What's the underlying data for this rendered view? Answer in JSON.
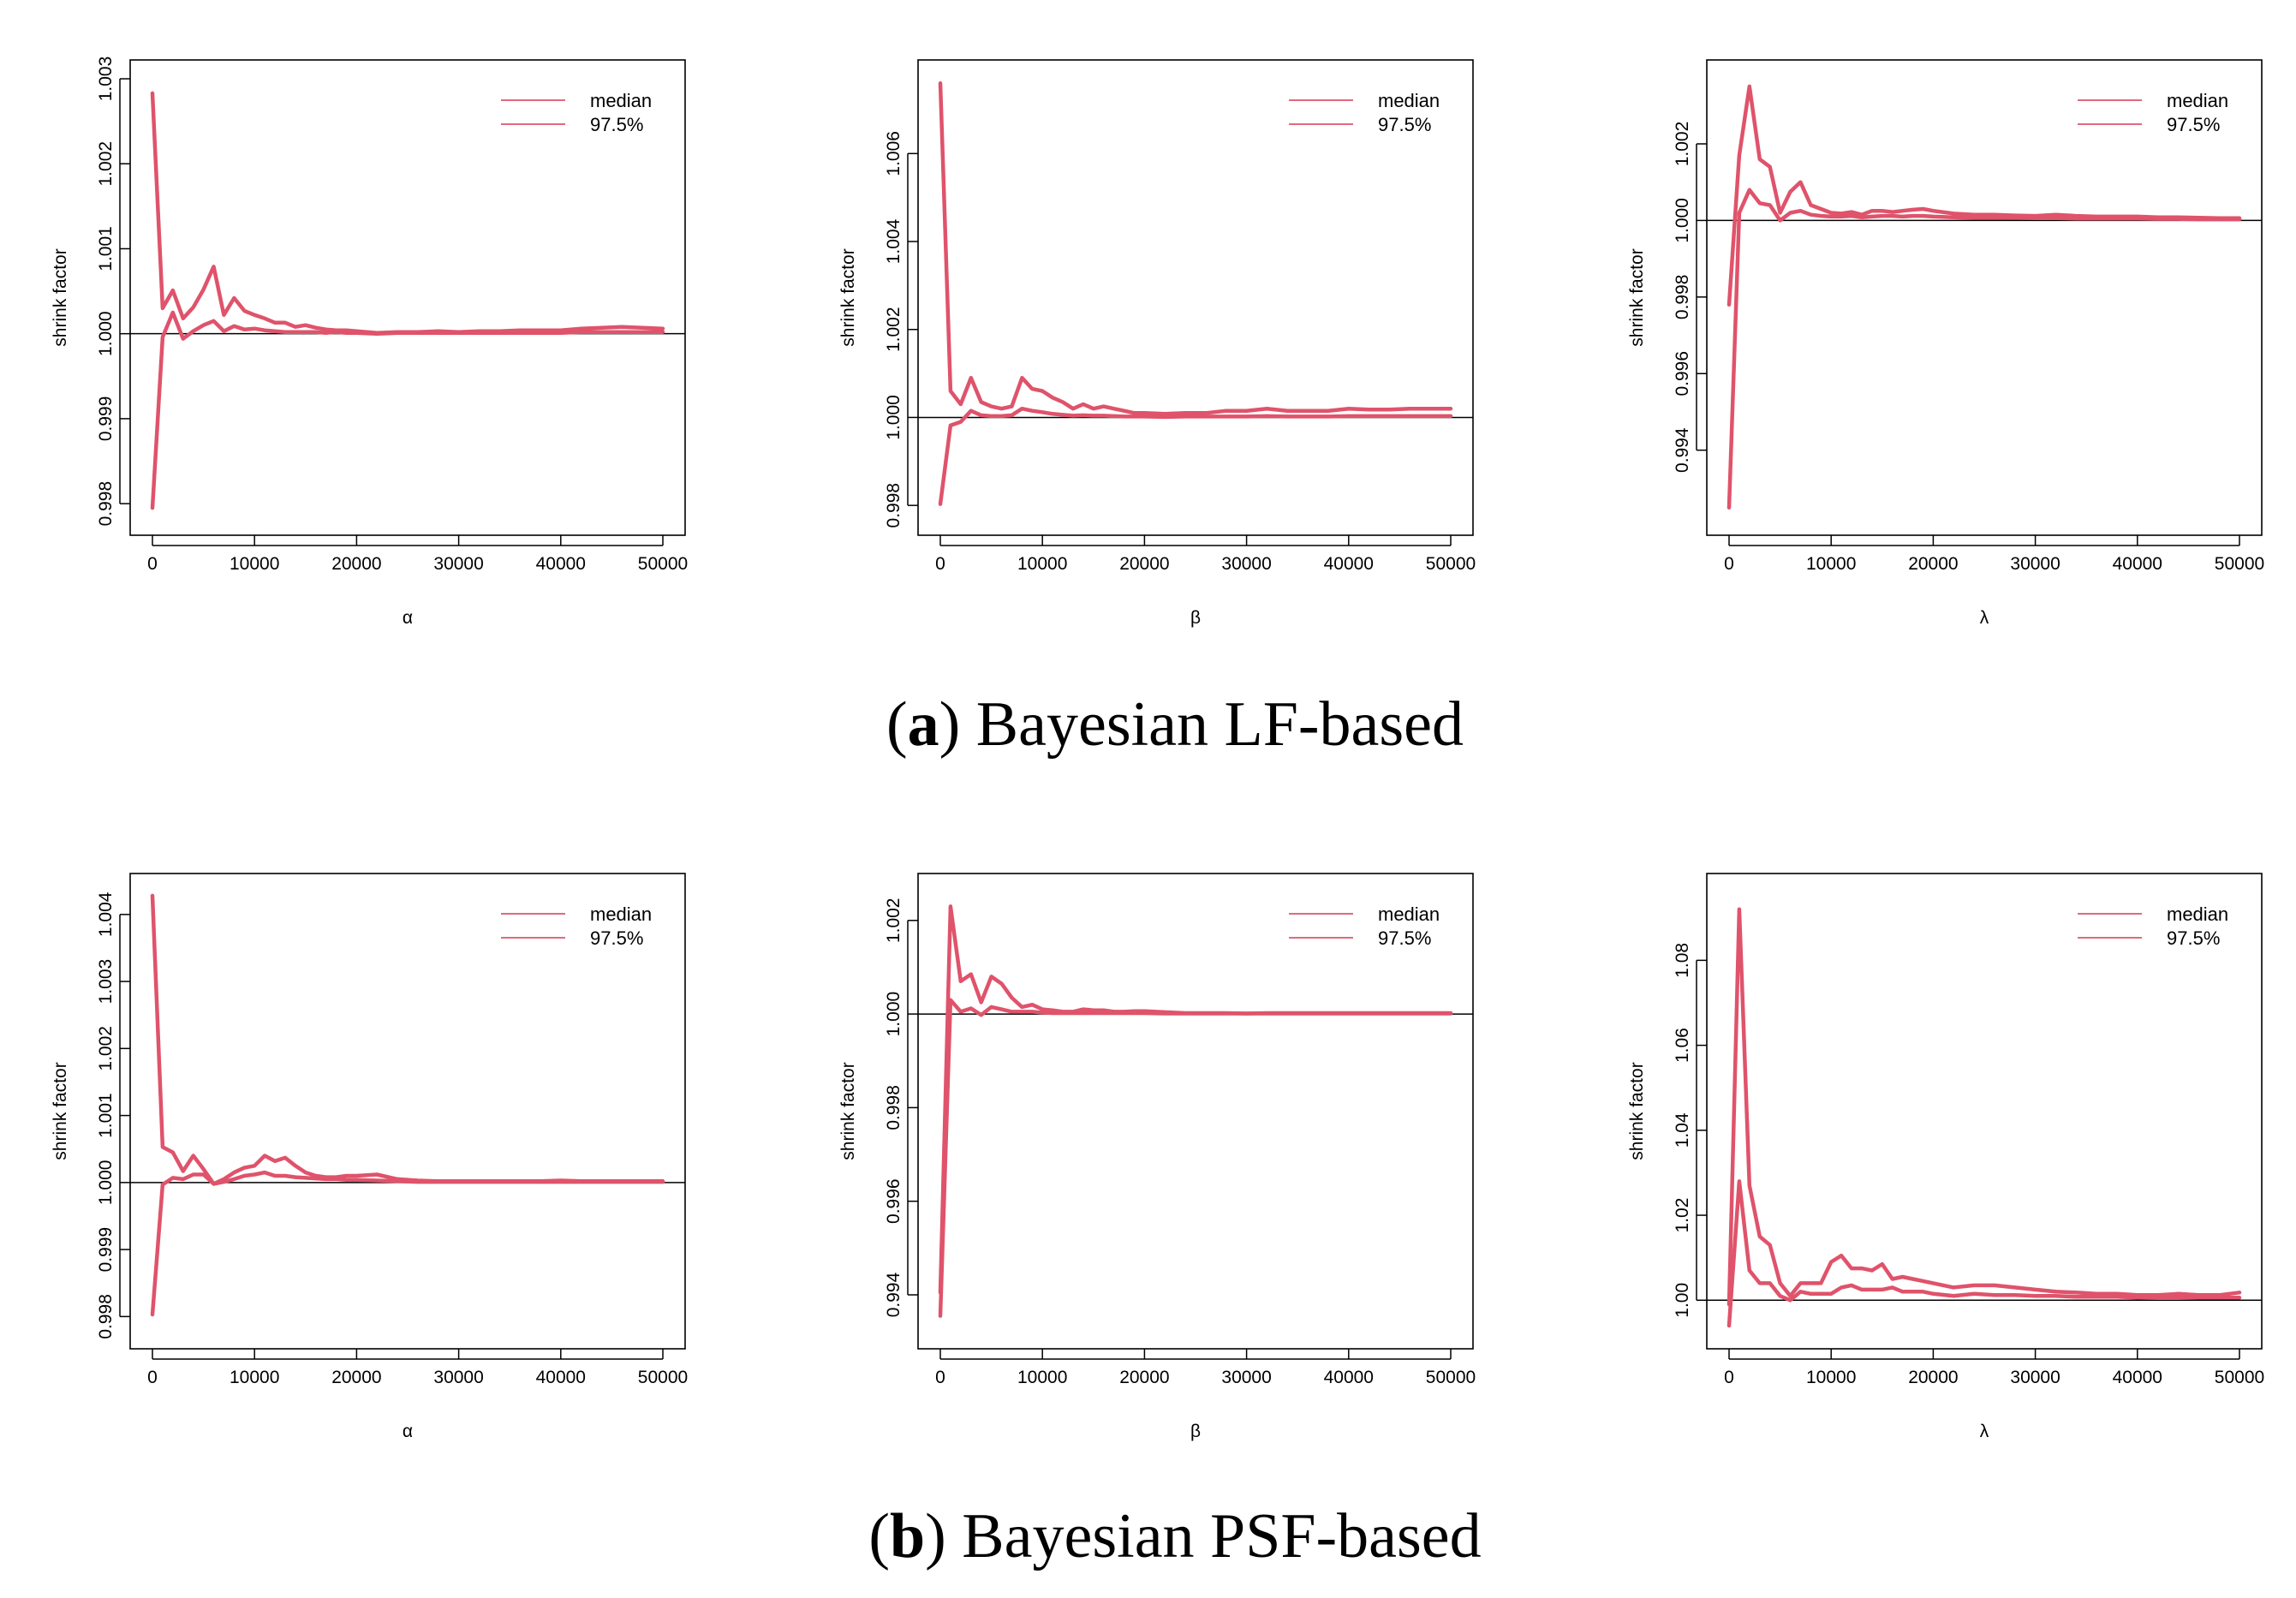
{
  "colors": {
    "series": "#df536b",
    "reference": "#000000",
    "frame": "#000000"
  },
  "captions": [
    {
      "label": "a",
      "text": " Bayesian LF-based"
    },
    {
      "label": "b",
      "text": " Bayesian PSF-based"
    }
  ],
  "chart_data": [
    {
      "type": "line",
      "parameter": "α",
      "xlabel": "α",
      "ylabel": "shrink factor",
      "xlim": [
        0,
        50000
      ],
      "xticks": [
        0,
        10000,
        20000,
        30000,
        40000,
        50000
      ],
      "xtick_labels": [
        "0",
        "10000",
        "20000",
        "30000",
        "40000",
        "50000"
      ],
      "ylim": [
        0.99785,
        1.003
      ],
      "yticks": [
        0.998,
        0.999,
        1.0,
        1.001,
        1.002,
        1.003
      ],
      "ytick_labels": [
        "0.998",
        "0.999",
        "1.000",
        "1.001",
        "1.002",
        "1.003"
      ],
      "reference_line": 1.0,
      "legend": [
        "median",
        "97.5%"
      ],
      "legend_position": "top-right",
      "x": [
        0,
        1000,
        2000,
        3000,
        4000,
        5000,
        6000,
        7000,
        8000,
        9000,
        10000,
        11000,
        12000,
        13000,
        14000,
        15000,
        16000,
        17000,
        18000,
        19000,
        20000,
        22000,
        24000,
        26000,
        28000,
        30000,
        32000,
        34000,
        36000,
        38000,
        40000,
        42000,
        44000,
        46000,
        48000,
        50000
      ],
      "series": [
        {
          "name": "median",
          "values": [
            0.99795,
            0.99996,
            1.00025,
            0.99994,
            1.00003,
            1.0001,
            1.00015,
            1.00003,
            1.00009,
            1.00005,
            1.00006,
            1.00004,
            1.00003,
            1.00002,
            1.00002,
            1.00002,
            1.00002,
            1.00001,
            1.00002,
            1.00001,
            1.00001,
            1.0,
            1.00001,
            1.00001,
            1.00001,
            1.00001,
            1.00001,
            1.00001,
            1.00001,
            1.00001,
            1.00001,
            1.00002,
            1.00002,
            1.00002,
            1.00002,
            1.00002
          ]
        },
        {
          "name": "97.5%",
          "values": [
            1.00283,
            1.0003,
            1.00051,
            1.00018,
            1.00031,
            1.00052,
            1.00079,
            1.00022,
            1.00042,
            1.00027,
            1.00022,
            1.00018,
            1.00013,
            1.00013,
            1.00008,
            1.0001,
            1.00007,
            1.00005,
            1.00004,
            1.00004,
            1.00003,
            1.00001,
            1.00002,
            1.00002,
            1.00003,
            1.00002,
            1.00003,
            1.00003,
            1.00004,
            1.00004,
            1.00004,
            1.00006,
            1.00007,
            1.00008,
            1.00007,
            1.00006
          ]
        }
      ]
    },
    {
      "type": "line",
      "parameter": "β",
      "xlabel": "β",
      "ylabel": "shrink factor",
      "xlim": [
        0,
        50000
      ],
      "xticks": [
        0,
        10000,
        20000,
        30000,
        40000,
        50000
      ],
      "xtick_labels": [
        "0",
        "10000",
        "20000",
        "30000",
        "40000",
        "50000"
      ],
      "ylim": [
        0.99775,
        1.0077
      ],
      "yticks": [
        0.998,
        1.0,
        1.002,
        1.004,
        1.006
      ],
      "ytick_labels": [
        "0.998",
        "1.000",
        "1.002",
        "1.004",
        "1.006"
      ],
      "reference_line": 1.0,
      "legend": [
        "median",
        "97.5%"
      ],
      "legend_position": "top-right",
      "x": [
        0,
        1000,
        2000,
        3000,
        4000,
        5000,
        6000,
        7000,
        8000,
        9000,
        10000,
        11000,
        12000,
        13000,
        14000,
        15000,
        16000,
        17000,
        18000,
        19000,
        20000,
        22000,
        24000,
        26000,
        28000,
        30000,
        32000,
        34000,
        36000,
        38000,
        40000,
        42000,
        44000,
        46000,
        48000,
        50000
      ],
      "series": [
        {
          "name": "median",
          "values": [
            0.99803,
            0.99982,
            0.9999,
            1.00015,
            1.00005,
            1.00003,
            1.00003,
            1.00005,
            1.0002,
            1.00015,
            1.00012,
            1.00008,
            1.00006,
            1.00004,
            1.00005,
            1.00004,
            1.00004,
            1.00003,
            1.00002,
            1.00002,
            1.00002,
            1.00001,
            1.00002,
            1.00002,
            1.00002,
            1.00002,
            1.00003,
            1.00002,
            1.00002,
            1.00002,
            1.00003,
            1.00003,
            1.00003,
            1.00003,
            1.00003,
            1.00003
          ]
        },
        {
          "name": "97.5%",
          "values": [
            1.0076,
            1.0006,
            1.0003,
            1.0009,
            1.00035,
            1.00025,
            1.0002,
            1.00025,
            1.0009,
            1.00065,
            1.0006,
            1.00045,
            1.00035,
            1.0002,
            1.0003,
            1.0002,
            1.00025,
            1.0002,
            1.00015,
            1.0001,
            1.0001,
            1.00008,
            1.0001,
            1.0001,
            1.00015,
            1.00015,
            1.0002,
            1.00015,
            1.00015,
            1.00015,
            1.0002,
            1.00018,
            1.00018,
            1.0002,
            1.0002,
            1.0002
          ]
        }
      ]
    },
    {
      "type": "line",
      "parameter": "λ",
      "xlabel": "λ",
      "ylabel": "shrink factor",
      "xlim": [
        0,
        50000
      ],
      "xticks": [
        0,
        10000,
        20000,
        30000,
        40000,
        50000
      ],
      "xtick_labels": [
        "0",
        "10000",
        "20000",
        "30000",
        "40000",
        "50000"
      ],
      "ylim": [
        0.99227,
        1.0037
      ],
      "yticks": [
        0.994,
        0.996,
        0.998,
        1.0,
        1.002
      ],
      "ytick_labels": [
        "0.994",
        "0.996",
        "0.998",
        "1.000",
        "1.002"
      ],
      "reference_line": 1.0,
      "legend": [
        "median",
        "97.5%"
      ],
      "legend_position": "top-right",
      "x": [
        0,
        1000,
        2000,
        3000,
        4000,
        5000,
        6000,
        7000,
        8000,
        9000,
        10000,
        11000,
        12000,
        13000,
        14000,
        15000,
        16000,
        17000,
        18000,
        19000,
        20000,
        22000,
        24000,
        26000,
        28000,
        30000,
        32000,
        34000,
        36000,
        38000,
        40000,
        42000,
        44000,
        46000,
        48000,
        50000
      ],
      "series": [
        {
          "name": "median",
          "values": [
            0.9925,
            1.0002,
            1.0008,
            1.00045,
            1.0004,
            1.0,
            1.0002,
            1.00025,
            1.00015,
            1.00012,
            1.0001,
            1.0001,
            1.00012,
            1.00008,
            1.0001,
            1.00012,
            1.00012,
            1.0001,
            1.00012,
            1.00012,
            1.0001,
            1.00008,
            1.00007,
            1.00007,
            1.00007,
            1.00006,
            1.00006,
            1.00005,
            1.00005,
            1.00005,
            1.00005,
            1.00004,
            1.00004,
            1.00003,
            1.00003,
            1.00003
          ]
        },
        {
          "name": "97.5%",
          "values": [
            0.9978,
            1.0017,
            1.0035,
            1.0016,
            1.0014,
            1.0002,
            1.00075,
            1.001,
            1.0004,
            1.0003,
            1.0002,
            1.00018,
            1.00022,
            1.00015,
            1.00025,
            1.00025,
            1.00022,
            1.00025,
            1.00028,
            1.0003,
            1.00025,
            1.00018,
            1.00015,
            1.00015,
            1.00013,
            1.00012,
            1.00015,
            1.00012,
            1.0001,
            1.0001,
            1.0001,
            1.00008,
            1.00008,
            1.00007,
            1.00006,
            1.00006
          ]
        }
      ]
    },
    {
      "type": "line",
      "parameter": "α",
      "xlabel": "α",
      "ylabel": "shrink factor",
      "xlim": [
        0,
        50000
      ],
      "xticks": [
        0,
        10000,
        20000,
        30000,
        40000,
        50000
      ],
      "xtick_labels": [
        "0",
        "10000",
        "20000",
        "30000",
        "40000",
        "50000"
      ],
      "ylim": [
        0.9978,
        1.00433
      ],
      "yticks": [
        0.998,
        0.999,
        1.0,
        1.001,
        1.002,
        1.003,
        1.004
      ],
      "ytick_labels": [
        "0.998",
        "0.999",
        "1.000",
        "1.001",
        "1.002",
        "1.003",
        "1.004"
      ],
      "reference_line": 1.0,
      "legend": [
        "median",
        "97.5%"
      ],
      "legend_position": "top-right",
      "x": [
        0,
        1000,
        2000,
        3000,
        4000,
        5000,
        6000,
        7000,
        8000,
        9000,
        10000,
        11000,
        12000,
        13000,
        14000,
        15000,
        16000,
        17000,
        18000,
        19000,
        20000,
        22000,
        24000,
        26000,
        28000,
        30000,
        32000,
        34000,
        36000,
        38000,
        40000,
        42000,
        44000,
        46000,
        48000,
        50000
      ],
      "series": [
        {
          "name": "median",
          "values": [
            0.99803,
            0.99997,
            1.00007,
            1.00005,
            1.00012,
            1.00012,
            0.99998,
            1.00001,
            1.00005,
            1.0001,
            1.00012,
            1.00015,
            1.0001,
            1.0001,
            1.00008,
            1.00007,
            1.00006,
            1.00005,
            1.00005,
            1.00004,
            1.00004,
            1.00003,
            1.00002,
            1.00001,
            1.00001,
            1.00001,
            1.00001,
            1.00001,
            1.00001,
            1.00001,
            1.00001,
            1.00001,
            1.00001,
            1.00001,
            1.00001,
            1.00001
          ]
        },
        {
          "name": "97.5%",
          "values": [
            1.00428,
            1.00053,
            1.00045,
            1.00017,
            1.0004,
            1.0002,
            0.99998,
            1.00005,
            1.00015,
            1.00022,
            1.00025,
            1.0004,
            1.00032,
            1.00037,
            1.00025,
            1.00015,
            1.0001,
            1.00008,
            1.00008,
            1.0001,
            1.0001,
            1.00012,
            1.00005,
            1.00003,
            1.00002,
            1.00002,
            1.00002,
            1.00002,
            1.00002,
            1.00002,
            1.00003,
            1.00002,
            1.00002,
            1.00002,
            1.00002,
            1.00002
          ]
        }
      ]
    },
    {
      "type": "line",
      "parameter": "β",
      "xlabel": "β",
      "ylabel": "shrink factor",
      "xlim": [
        0,
        50000
      ],
      "xticks": [
        0,
        10000,
        20000,
        30000,
        40000,
        50000
      ],
      "xtick_labels": [
        "0",
        "10000",
        "20000",
        "30000",
        "40000",
        "50000"
      ],
      "ylim": [
        0.99325,
        1.0026
      ],
      "yticks": [
        0.994,
        0.996,
        0.998,
        1.0,
        1.002
      ],
      "ytick_labels": [
        "0.994",
        "0.996",
        "0.998",
        "1.000",
        "1.002"
      ],
      "reference_line": 1.0,
      "legend": [
        "median",
        "97.5%"
      ],
      "legend_position": "top-right",
      "x": [
        0,
        1000,
        2000,
        3000,
        4000,
        5000,
        6000,
        7000,
        8000,
        9000,
        10000,
        11000,
        12000,
        13000,
        14000,
        15000,
        16000,
        17000,
        18000,
        19000,
        20000,
        22000,
        24000,
        26000,
        28000,
        30000,
        32000,
        34000,
        36000,
        38000,
        40000,
        42000,
        44000,
        46000,
        48000,
        50000
      ],
      "series": [
        {
          "name": "median",
          "values": [
            0.99355,
            1.0003,
            1.00005,
            1.00012,
            0.99998,
            1.00015,
            1.0001,
            1.00005,
            1.00005,
            1.00005,
            1.00003,
            1.00002,
            1.00002,
            1.00002,
            1.00002,
            1.00002,
            1.00002,
            1.00002,
            1.00002,
            1.00002,
            1.00002,
            1.00001,
            1.00001,
            1.00001,
            1.00001,
            1.00001,
            1.00001,
            1.00001,
            1.00001,
            1.00001,
            1.00001,
            1.00001,
            1.00001,
            1.00001,
            1.00001,
            1.00001
          ]
        },
        {
          "name": "97.5%",
          "values": [
            0.99405,
            1.0023,
            1.0007,
            1.00085,
            1.00025,
            1.0008,
            1.00065,
            1.00035,
            1.00015,
            1.0002,
            1.0001,
            1.00008,
            1.00005,
            1.00005,
            1.0001,
            1.00008,
            1.00008,
            1.00005,
            1.00005,
            1.00006,
            1.00006,
            1.00004,
            1.00002,
            1.00002,
            1.00002,
            1.00001,
            1.00002,
            1.00002,
            1.00002,
            1.00002,
            1.00002,
            1.00002,
            1.00002,
            1.00002,
            1.00002,
            1.00002
          ]
        }
      ]
    },
    {
      "type": "line",
      "parameter": "λ",
      "xlabel": "λ",
      "ylabel": "shrink factor",
      "xlim": [
        0,
        50000
      ],
      "xticks": [
        0,
        10000,
        20000,
        30000,
        40000,
        50000
      ],
      "xtick_labels": [
        "0",
        "10000",
        "20000",
        "30000",
        "40000",
        "50000"
      ],
      "ylim": [
        0.993,
        1.096
      ],
      "yticks": [
        1.0,
        1.02,
        1.04,
        1.06,
        1.08
      ],
      "ytick_labels": [
        "1.00",
        "1.02",
        "1.04",
        "1.06",
        "1.08"
      ],
      "reference_line": 1.0,
      "legend": [
        "median",
        "97.5%"
      ],
      "legend_position": "top-right",
      "x": [
        0,
        1000,
        2000,
        3000,
        4000,
        5000,
        6000,
        7000,
        8000,
        9000,
        10000,
        11000,
        12000,
        13000,
        14000,
        15000,
        16000,
        17000,
        18000,
        19000,
        20000,
        22000,
        24000,
        26000,
        28000,
        30000,
        32000,
        34000,
        36000,
        38000,
        40000,
        42000,
        44000,
        46000,
        48000,
        50000
      ],
      "series": [
        {
          "name": "median",
          "values": [
            0.994,
            1.028,
            1.007,
            1.004,
            1.004,
            1.001,
            1.0,
            1.002,
            1.0015,
            1.0015,
            1.0015,
            1.003,
            1.0035,
            1.0025,
            1.0025,
            1.0025,
            1.003,
            1.002,
            1.002,
            1.002,
            1.0015,
            1.001,
            1.0015,
            1.0012,
            1.0012,
            1.001,
            1.001,
            1.0008,
            1.0008,
            1.0008,
            1.0006,
            1.0007,
            1.0007,
            1.0006,
            1.0006,
            1.0006
          ]
        },
        {
          "name": "97.5%",
          "values": [
            0.999,
            1.092,
            1.027,
            1.015,
            1.013,
            1.004,
            1.001,
            1.004,
            1.004,
            1.004,
            1.009,
            1.0105,
            1.0075,
            1.0075,
            1.007,
            1.0085,
            1.005,
            1.0055,
            1.005,
            1.0045,
            1.004,
            1.003,
            1.0035,
            1.0035,
            1.003,
            1.0025,
            1.002,
            1.0018,
            1.0015,
            1.0015,
            1.0012,
            1.0012,
            1.0015,
            1.0012,
            1.0012,
            1.0018
          ]
        }
      ]
    }
  ]
}
